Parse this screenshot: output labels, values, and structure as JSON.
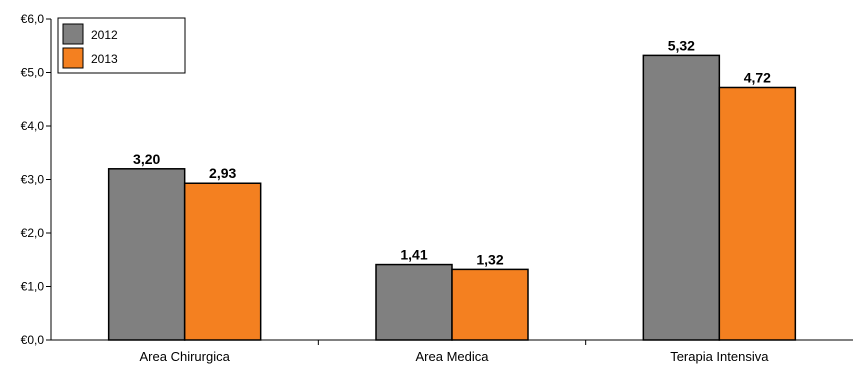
{
  "chart_data": {
    "type": "bar",
    "categories": [
      "Area Chirurgica",
      "Area Medica",
      "Terapia Intensiva"
    ],
    "series": [
      {
        "name": "2012",
        "values": [
          3.2,
          1.41,
          5.32
        ],
        "labels": [
          "3,20",
          "1,41",
          "5,32"
        ],
        "color": "#808080"
      },
      {
        "name": "2013",
        "values": [
          2.93,
          1.32,
          4.72
        ],
        "labels": [
          "2,93",
          "1,32",
          "4,72"
        ],
        "color": "#F48020"
      }
    ],
    "ylim": [
      0,
      6
    ],
    "yticks": [
      0,
      1,
      2,
      3,
      4,
      5,
      6
    ],
    "ytick_labels": [
      "€0,0",
      "€1,0",
      "€2,0",
      "€3,0",
      "€4,0",
      "€5,0",
      "€6,0"
    ],
    "grid": false,
    "legend_position": "top-left",
    "title": "",
    "xlabel": "",
    "ylabel": ""
  }
}
